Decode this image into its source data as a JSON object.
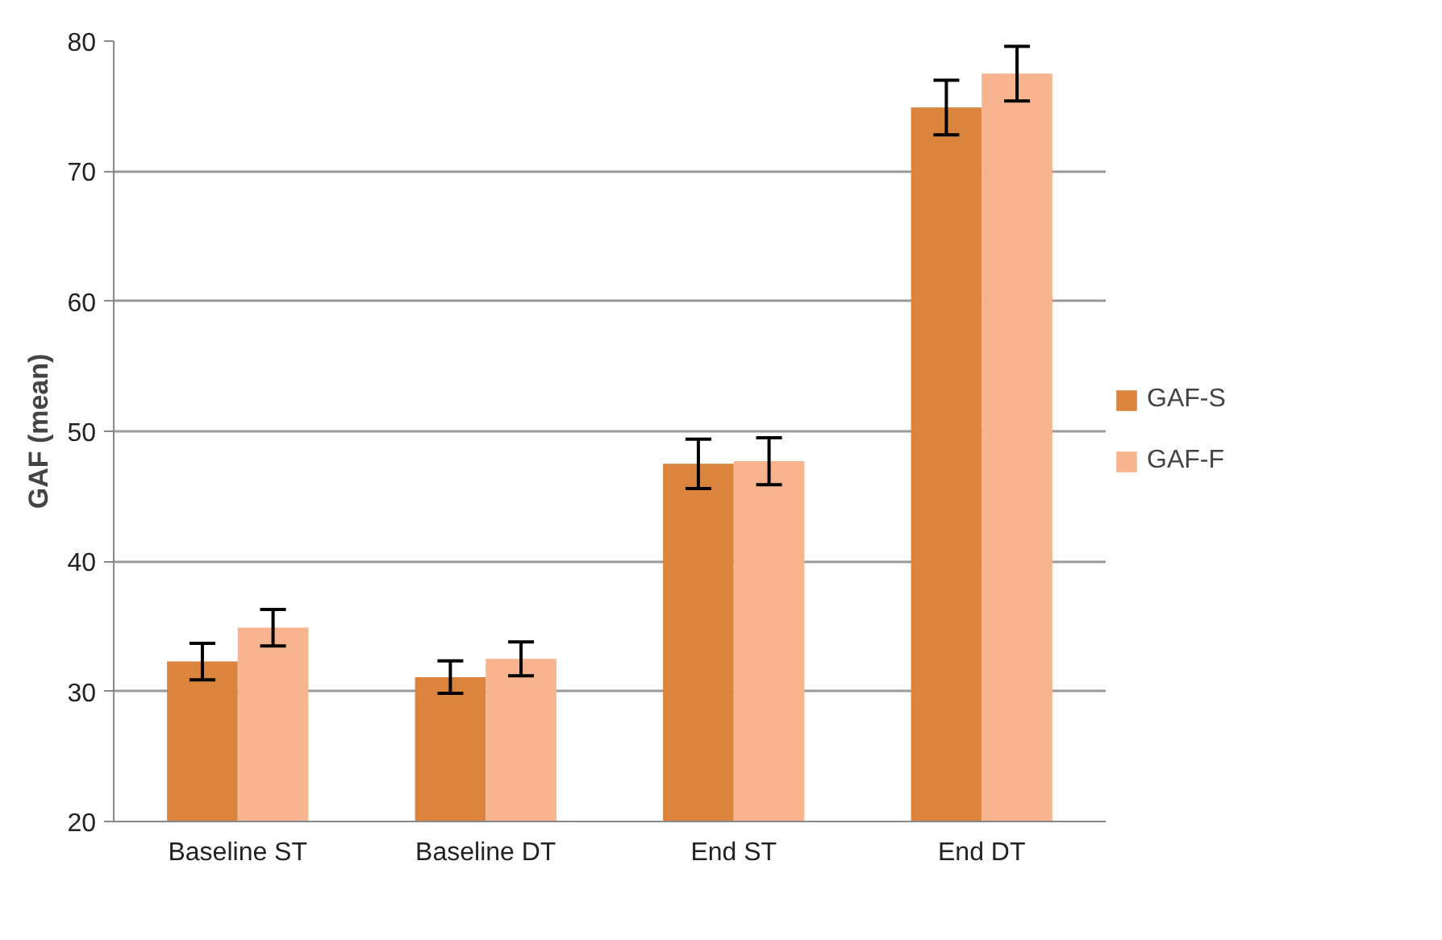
{
  "chart_data": {
    "type": "bar",
    "ylabel": "GAF (mean)",
    "categories": [
      "Baseline ST",
      "Baseline DT",
      "End ST",
      "End DT"
    ],
    "series": [
      {
        "name": "GAF-S",
        "color": "#db843d",
        "values": [
          32.3,
          31.1,
          47.5,
          74.9
        ],
        "errors": [
          1.4,
          1.25,
          1.9,
          2.1
        ]
      },
      {
        "name": "GAF-F",
        "color": "#f8b48e",
        "values": [
          34.9,
          32.5,
          47.7,
          77.5
        ],
        "errors": [
          1.4,
          1.3,
          1.8,
          2.1
        ]
      }
    ],
    "ylim": [
      20,
      80
    ],
    "yticks": [
      20,
      30,
      40,
      50,
      60,
      70,
      80
    ],
    "grid": "y",
    "legend": "right"
  }
}
